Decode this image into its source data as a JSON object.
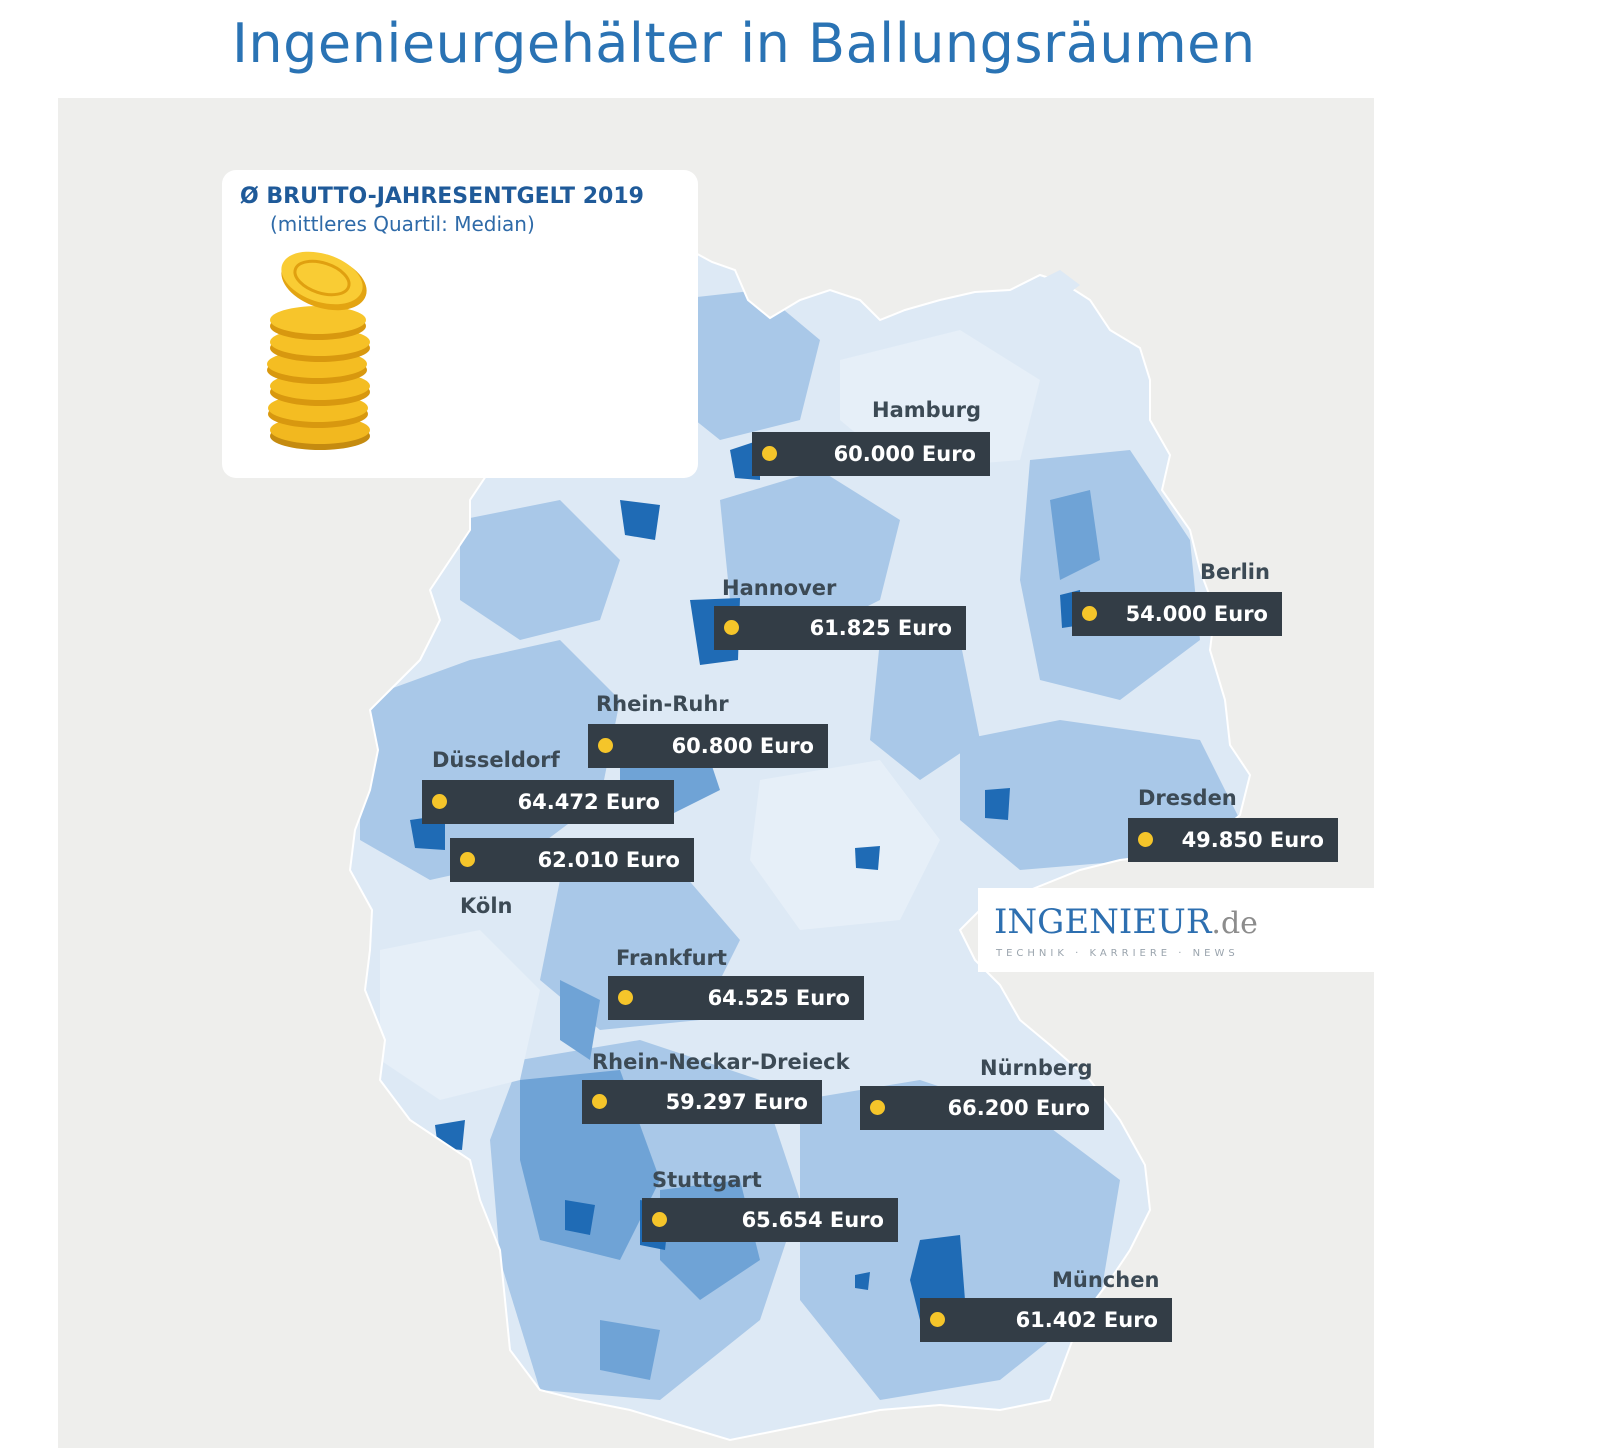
{
  "title": "Ingenieurgehälter in Ballungsräumen",
  "legend": {
    "title": "Ø BRUTTO-JAHRESENTGELT 2019",
    "subtitle": "(mittleres Quartil: Median)"
  },
  "brand": {
    "name": "INGENIEUR",
    "tld": ".de",
    "tagline": "TECHNIK · KARRIERE · NEWS"
  },
  "colors": {
    "title": "#2a73b4",
    "box": "#333d46",
    "dot": "#f5c52a",
    "region_light": "#dde9f5",
    "region_mid": "#a9c8e8",
    "region_dark": "#6fa3d6",
    "region_city": "#1f6bb5"
  },
  "cities": [
    {
      "name": "Hamburg",
      "salary": "60.000 Euro"
    },
    {
      "name": "Hannover",
      "salary": "61.825 Euro"
    },
    {
      "name": "Berlin",
      "salary": "54.000 Euro"
    },
    {
      "name": "Rhein-Ruhr",
      "salary": "60.800 Euro"
    },
    {
      "name": "Düsseldorf",
      "salary": "64.472 Euro"
    },
    {
      "name": "Köln",
      "salary": "62.010 Euro"
    },
    {
      "name": "Dresden",
      "salary": "49.850 Euro"
    },
    {
      "name": "Frankfurt",
      "salary": "64.525 Euro"
    },
    {
      "name": "Rhein-Neckar-Dreieck",
      "salary": "59.297 Euro"
    },
    {
      "name": "Nürnberg",
      "salary": "66.200 Euro"
    },
    {
      "name": "Stuttgart",
      "salary": "65.654 Euro"
    },
    {
      "name": "München",
      "salary": "61.402 Euro"
    }
  ]
}
